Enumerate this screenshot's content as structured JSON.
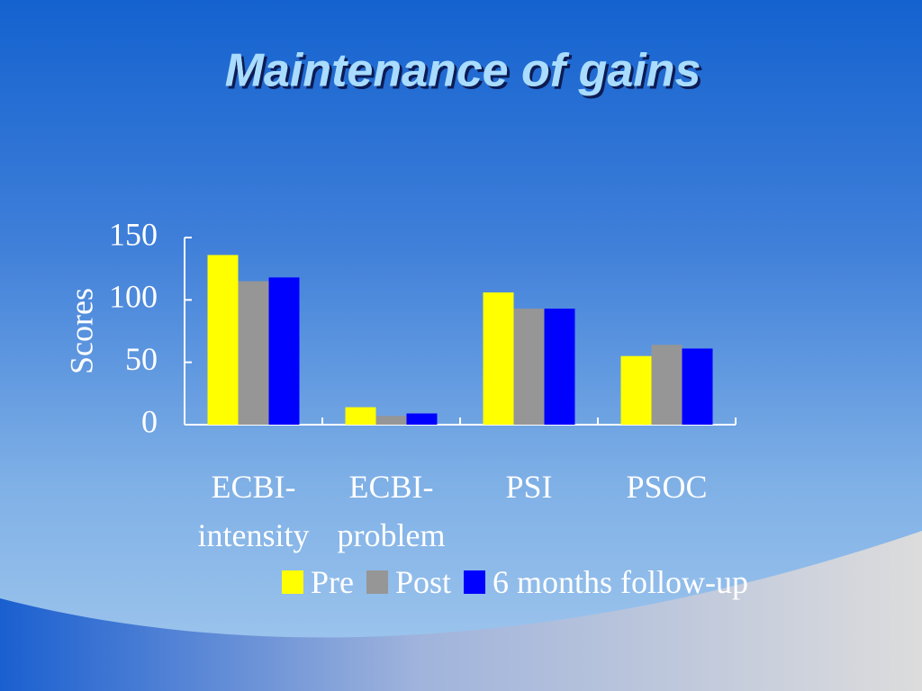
{
  "chart_data": {
    "type": "bar",
    "title": "Maintenance of gains",
    "y_label": "Scores",
    "categories": [
      "ECBI-intensity",
      "ECBI-problem",
      "PSI",
      "PSOC"
    ],
    "series": [
      {
        "name": "Pre",
        "color": "#ffff00",
        "values": [
          136,
          14,
          106,
          55
        ]
      },
      {
        "name": "Post",
        "color": "#969696",
        "values": [
          115,
          7,
          93,
          64
        ]
      },
      {
        "name": "6 months follow-up",
        "color": "#0000ff",
        "values": [
          118,
          9,
          93,
          61
        ]
      }
    ],
    "ylim": [
      0,
      150
    ],
    "yticks": [
      0,
      50,
      100,
      150
    ],
    "grid": false
  }
}
